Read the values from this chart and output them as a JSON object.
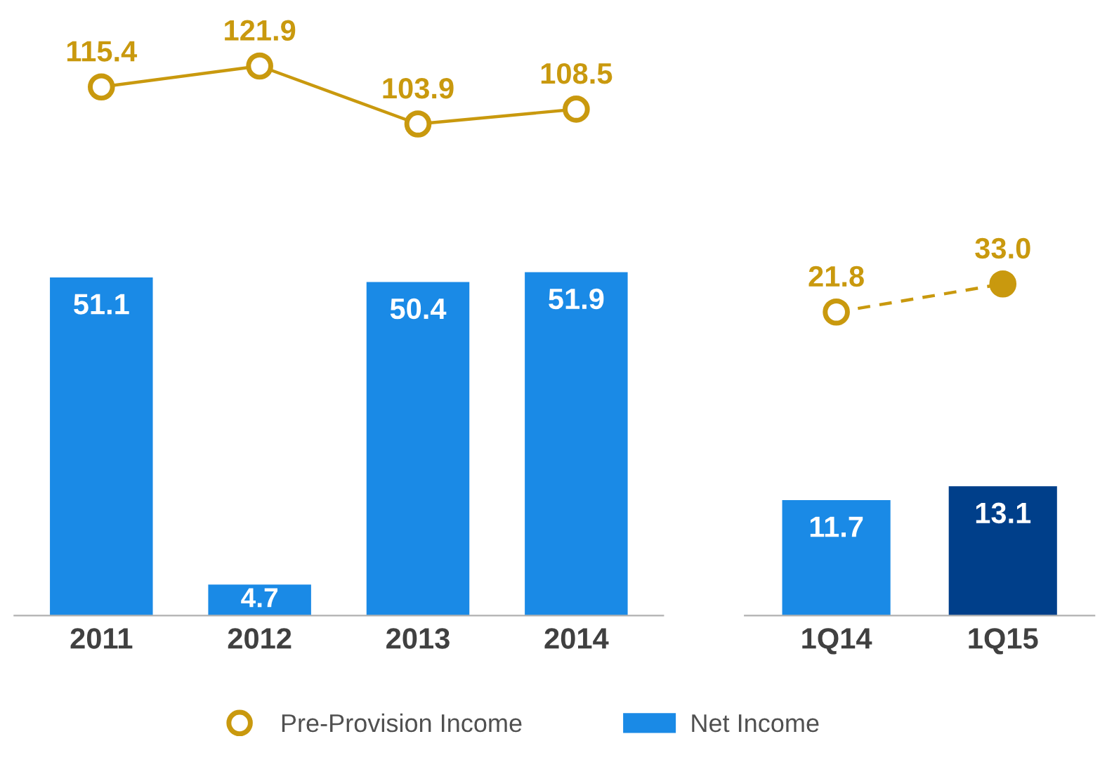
{
  "chart_data": [
    {
      "type": "line",
      "categories": [
        null,
        null,
        null,
        null
      ],
      "data_labels": true,
      "legend": "bottom",
      "marker": "circle",
      "line_style": "solid",
      "series": [
        {
          "name": "Pre-Provision Income",
          "color": "#c9990e",
          "values": [
            115.4,
            121.9,
            103.9,
            108.5
          ]
        }
      ]
    },
    {
      "type": "bar",
      "categories": [
        "2011",
        "2012",
        "2013",
        "2014"
      ],
      "data_labels": true,
      "series": [
        {
          "name": "Net Income",
          "color": "#1a8ae6",
          "values": [
            51.1,
            4.7,
            50.4,
            51.9
          ]
        }
      ]
    },
    {
      "type": "line",
      "categories": [
        null,
        null
      ],
      "marker": "circle",
      "line_style": "dashed",
      "series": [
        {
          "name": "Pre-Provision Income",
          "color": "#c9990e",
          "values": [
            21.8,
            33.0
          ],
          "value_labels": [
            "21.8",
            "33.0"
          ]
        }
      ]
    },
    {
      "type": "bar",
      "categories": [
        "1Q14",
        "1Q15"
      ],
      "data_labels": true,
      "series": [
        {
          "name": "Net Income",
          "colors": [
            "#1a8ae6",
            "#003f8a"
          ],
          "values": [
            11.7,
            13.1
          ]
        }
      ]
    }
  ]
}
